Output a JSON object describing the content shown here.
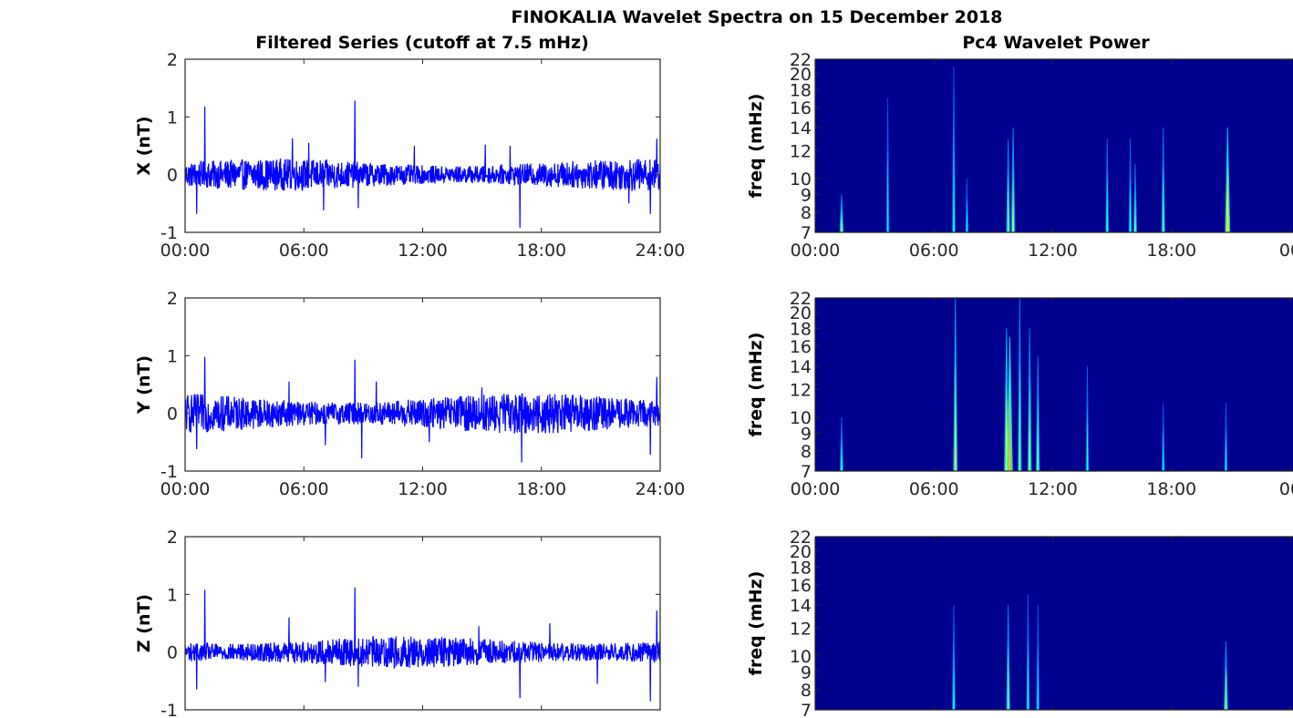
{
  "figure": {
    "title": "FINOKALIA Wavelet Spectra on 15 December 2018",
    "left_column_title": "Filtered Series (cutoff at 7.5 mHz)",
    "right_column_title": "Pc4 Wavelet Power"
  },
  "colors": {
    "series_line": "#0000ff",
    "spectrogram_background": "#00008f",
    "axes": "#262626"
  },
  "chart_data": [
    {
      "type": "line",
      "component": "X",
      "title": "",
      "xlabel": "",
      "ylabel": "X (nT)",
      "xlim": [
        "00:00",
        "24:00"
      ],
      "ylim": [
        -1,
        2
      ],
      "x_tick_labels": [
        "00:00",
        "06:00",
        "12:00",
        "18:00",
        "24:00"
      ],
      "y_tick_labels": [
        "-1",
        "0",
        "1",
        "2"
      ],
      "noise_envelope_nT": 0.25,
      "series": [
        {
          "color": "#0000ff",
          "baseline": 0
        }
      ],
      "spikes": [
        {
          "t": "01:00",
          "v": 1.18
        },
        {
          "t": "08:35",
          "v": 1.28
        },
        {
          "t": "00:35",
          "v": -0.68
        },
        {
          "t": "05:25",
          "v": 0.63
        },
        {
          "t": "06:15",
          "v": 0.55
        },
        {
          "t": "07:00",
          "v": -0.62
        },
        {
          "t": "08:45",
          "v": -0.58
        },
        {
          "t": "15:10",
          "v": 0.52
        },
        {
          "t": "16:55",
          "v": -0.92
        },
        {
          "t": "16:25",
          "v": 0.5
        },
        {
          "t": "22:25",
          "v": -0.5
        },
        {
          "t": "23:30",
          "v": -0.68
        },
        {
          "t": "23:50",
          "v": 0.62
        },
        {
          "t": "11:35",
          "v": 0.5
        }
      ]
    },
    {
      "type": "heatmap",
      "component": "X",
      "title": "",
      "xlabel": "",
      "ylabel": "freq (mHz)",
      "xlim": [
        "00:00",
        "24:00"
      ],
      "ylim": [
        7,
        22
      ],
      "x_tick_labels": [
        "00:00",
        "06:00",
        "12:00",
        "18:00",
        "00"
      ],
      "y_tick_values": [
        7,
        8,
        9,
        10,
        12,
        14,
        16,
        18,
        20,
        22
      ],
      "y_tick_labels": [
        "7",
        "8",
        "9",
        "10",
        "12",
        "14",
        "16",
        "18",
        "20",
        "22"
      ],
      "bursts": [
        {
          "t": "01:20",
          "f_max": 9,
          "intensity": 0.55
        },
        {
          "t": "03:40",
          "f_max": 17,
          "intensity": 0.3
        },
        {
          "t": "07:00",
          "f_max": 21,
          "intensity": 0.35
        },
        {
          "t": "07:40",
          "f_max": 10,
          "intensity": 0.3
        },
        {
          "t": "09:45",
          "f_max": 13,
          "intensity": 0.5
        },
        {
          "t": "10:00",
          "f_max": 14,
          "intensity": 0.55
        },
        {
          "t": "14:45",
          "f_max": 13,
          "intensity": 0.4
        },
        {
          "t": "15:55",
          "f_max": 13,
          "intensity": 0.35
        },
        {
          "t": "16:10",
          "f_max": 11,
          "intensity": 0.45
        },
        {
          "t": "17:35",
          "f_max": 14,
          "intensity": 0.45
        },
        {
          "t": "20:50",
          "f_max": 14,
          "intensity": 0.8
        }
      ]
    },
    {
      "type": "line",
      "component": "Y",
      "title": "",
      "xlabel": "",
      "ylabel": "Y (nT)",
      "xlim": [
        "00:00",
        "24:00"
      ],
      "ylim": [
        -1,
        2
      ],
      "x_tick_labels": [
        "00:00",
        "06:00",
        "12:00",
        "18:00",
        "24:00"
      ],
      "y_tick_labels": [
        "-1",
        "0",
        "1",
        "2"
      ],
      "noise_envelope_nT": 0.32,
      "series": [
        {
          "color": "#0000ff",
          "baseline": 0
        }
      ],
      "spikes": [
        {
          "t": "01:00",
          "v": 0.98
        },
        {
          "t": "08:35",
          "v": 0.93
        },
        {
          "t": "00:35",
          "v": -0.62
        },
        {
          "t": "05:15",
          "v": 0.55
        },
        {
          "t": "07:05",
          "v": -0.55
        },
        {
          "t": "08:55",
          "v": -0.78
        },
        {
          "t": "09:40",
          "v": 0.55
        },
        {
          "t": "17:00",
          "v": -0.85
        },
        {
          "t": "23:30",
          "v": -0.72
        },
        {
          "t": "23:50",
          "v": 0.63
        },
        {
          "t": "15:00",
          "v": 0.45
        },
        {
          "t": "12:20",
          "v": -0.5
        }
      ]
    },
    {
      "type": "heatmap",
      "component": "Y",
      "title": "",
      "xlabel": "",
      "ylabel": "freq (mHz)",
      "xlim": [
        "00:00",
        "24:00"
      ],
      "ylim": [
        7,
        22
      ],
      "x_tick_labels": [
        "00:00",
        "06:00",
        "12:00",
        "18:00",
        "00"
      ],
      "y_tick_values": [
        7,
        8,
        9,
        10,
        12,
        14,
        16,
        18,
        20,
        22
      ],
      "y_tick_labels": [
        "7",
        "8",
        "9",
        "10",
        "12",
        "14",
        "16",
        "18",
        "20",
        "22"
      ],
      "bursts": [
        {
          "t": "01:20",
          "f_max": 10,
          "intensity": 0.4
        },
        {
          "t": "07:05",
          "f_max": 22,
          "intensity": 0.6
        },
        {
          "t": "09:40",
          "f_max": 18,
          "intensity": 0.7
        },
        {
          "t": "09:50",
          "f_max": 17,
          "intensity": 0.9
        },
        {
          "t": "10:20",
          "f_max": 22,
          "intensity": 0.5
        },
        {
          "t": "10:50",
          "f_max": 18,
          "intensity": 0.55
        },
        {
          "t": "11:15",
          "f_max": 15,
          "intensity": 0.5
        },
        {
          "t": "13:45",
          "f_max": 14,
          "intensity": 0.35
        },
        {
          "t": "17:35",
          "f_max": 11,
          "intensity": 0.3
        },
        {
          "t": "20:45",
          "f_max": 11,
          "intensity": 0.3
        }
      ]
    },
    {
      "type": "line",
      "component": "Z",
      "title": "",
      "xlabel": "",
      "ylabel": "Z (nT)",
      "xlim": [
        "00:00",
        "24:00"
      ],
      "ylim": [
        -1,
        2
      ],
      "x_tick_labels": [],
      "y_tick_labels": [
        "-1",
        "0",
        "1",
        "2"
      ],
      "noise_envelope_nT": 0.25,
      "series": [
        {
          "color": "#0000ff",
          "baseline": 0
        }
      ],
      "spikes": [
        {
          "t": "01:00",
          "v": 1.08
        },
        {
          "t": "08:35",
          "v": 1.12
        },
        {
          "t": "00:35",
          "v": -0.65
        },
        {
          "t": "05:15",
          "v": 0.6
        },
        {
          "t": "07:05",
          "v": -0.52
        },
        {
          "t": "08:45",
          "v": -0.6
        },
        {
          "t": "16:55",
          "v": -0.8
        },
        {
          "t": "20:50",
          "v": -0.55
        },
        {
          "t": "23:30",
          "v": -0.85
        },
        {
          "t": "23:50",
          "v": 0.72
        },
        {
          "t": "18:25",
          "v": 0.5
        },
        {
          "t": "14:50",
          "v": 0.45
        }
      ]
    },
    {
      "type": "heatmap",
      "component": "Z",
      "title": "",
      "xlabel": "",
      "ylabel": "freq (mHz)",
      "xlim": [
        "00:00",
        "24:00"
      ],
      "ylim": [
        7,
        22
      ],
      "x_tick_labels": [],
      "y_tick_values": [
        7,
        8,
        9,
        10,
        12,
        14,
        16,
        18,
        20,
        22
      ],
      "y_tick_labels": [
        "7",
        "8",
        "9",
        "10",
        "12",
        "14",
        "16",
        "18",
        "20",
        "22"
      ],
      "bursts": [
        {
          "t": "07:00",
          "f_max": 14,
          "intensity": 0.35
        },
        {
          "t": "09:45",
          "f_max": 14,
          "intensity": 0.5
        },
        {
          "t": "10:45",
          "f_max": 15,
          "intensity": 0.35
        },
        {
          "t": "11:15",
          "f_max": 14,
          "intensity": 0.3
        },
        {
          "t": "20:45",
          "f_max": 11,
          "intensity": 0.55
        }
      ]
    }
  ]
}
